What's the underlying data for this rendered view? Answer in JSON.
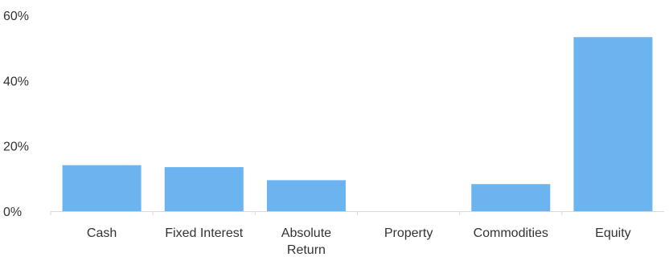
{
  "chart_data": {
    "type": "bar",
    "title": "",
    "xlabel": "",
    "ylabel": "",
    "categories": [
      [
        "Cash"
      ],
      [
        "Fixed Interest"
      ],
      [
        "Absolute",
        "Return"
      ],
      [
        "Property"
      ],
      [
        "Commodities"
      ],
      [
        "Equity"
      ]
    ],
    "values": [
      14.1,
      13.5,
      9.5,
      0,
      8.3,
      53.3
    ],
    "ylim": [
      0,
      60
    ],
    "yticks": [
      0,
      20,
      40,
      60
    ],
    "ytick_labels": [
      "0%",
      "20%",
      "40%",
      "60%"
    ],
    "grid": false,
    "bar_color": "#6cb4ef",
    "axis_color": "#d9d9d9"
  }
}
